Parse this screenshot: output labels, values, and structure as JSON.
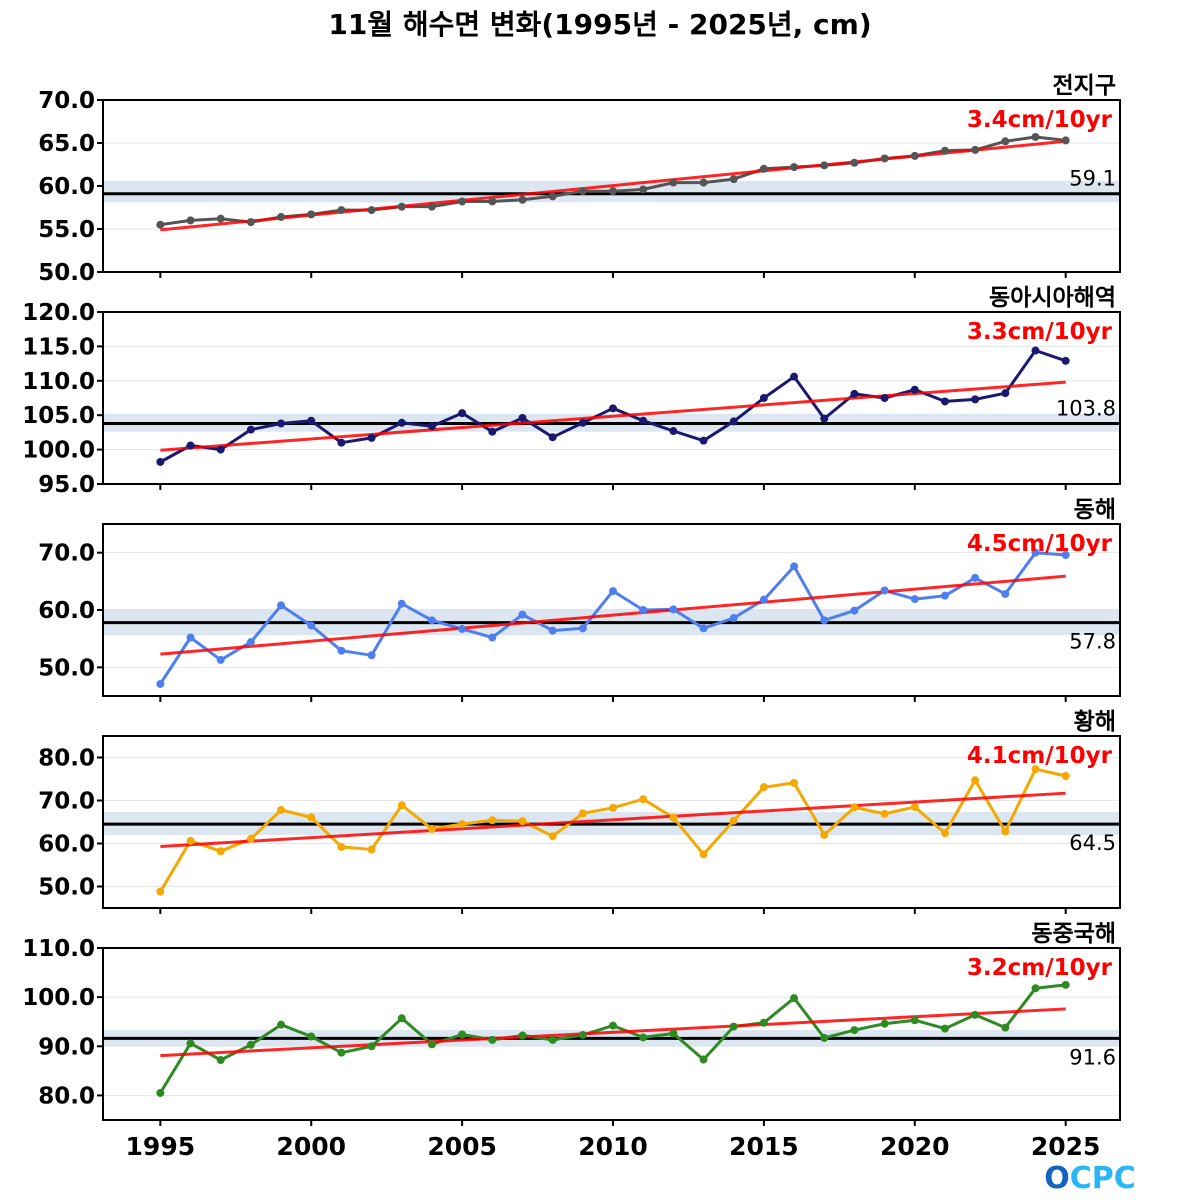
{
  "title": "11월 해수면 변화(1995년 - 2025년, cm)",
  "logo": {
    "text": "OCPC",
    "colors": [
      "#1565c0",
      "#29b6f6"
    ]
  },
  "chart_data": [
    {
      "type": "line",
      "region": "전지구",
      "trend_label": "3.4cm/10yr",
      "mean": 59.1,
      "mean_label": "59.1",
      "mean_band": [
        58.1,
        60.6
      ],
      "color": "#555555",
      "ylim": [
        50,
        70
      ],
      "yticks": [
        50.0,
        55.0,
        60.0,
        65.0,
        70.0
      ],
      "ytick_labels": [
        "50.0",
        "55.0",
        "60.0",
        "65.0",
        "70.0"
      ],
      "trend_line": [
        54.9,
        65.2
      ],
      "x": [
        1995,
        1996,
        1997,
        1998,
        1999,
        2000,
        2001,
        2002,
        2003,
        2004,
        2005,
        2006,
        2007,
        2008,
        2009,
        2010,
        2011,
        2012,
        2013,
        2014,
        2015,
        2016,
        2017,
        2018,
        2019,
        2020,
        2021,
        2022,
        2023,
        2024,
        2025
      ],
      "values": [
        55.5,
        56.0,
        56.2,
        55.8,
        56.4,
        56.7,
        57.2,
        57.2,
        57.6,
        57.6,
        58.2,
        58.2,
        58.4,
        58.8,
        59.4,
        59.4,
        59.6,
        60.4,
        60.4,
        60.8,
        62.0,
        62.2,
        62.4,
        62.7,
        63.2,
        63.5,
        64.1,
        64.2,
        65.2,
        65.7,
        65.3
      ]
    },
    {
      "type": "line",
      "region": "동아시아해역",
      "trend_label": "3.3cm/10yr",
      "mean": 103.8,
      "mean_label": "103.8",
      "mean_band": [
        102.6,
        105.2
      ],
      "color": "#191970",
      "ylim": [
        95,
        120
      ],
      "yticks": [
        95.0,
        100.0,
        105.0,
        110.0,
        115.0,
        120.0
      ],
      "ytick_labels": [
        "95.0",
        "100.0",
        "105.0",
        "110.0",
        "115.0",
        "120.0"
      ],
      "trend_line": [
        99.9,
        109.8
      ],
      "x": [
        1995,
        1996,
        1997,
        1998,
        1999,
        2000,
        2001,
        2002,
        2003,
        2004,
        2005,
        2006,
        2007,
        2008,
        2009,
        2010,
        2011,
        2012,
        2013,
        2014,
        2015,
        2016,
        2017,
        2018,
        2019,
        2020,
        2021,
        2022,
        2023,
        2024,
        2025
      ],
      "values": [
        98.2,
        100.6,
        100.0,
        102.9,
        103.8,
        104.2,
        101.0,
        101.7,
        103.9,
        103.4,
        105.3,
        102.6,
        104.6,
        101.8,
        103.9,
        106.0,
        104.2,
        102.7,
        101.3,
        104.1,
        107.5,
        110.6,
        104.5,
        108.1,
        107.5,
        108.7,
        107.0,
        107.3,
        108.2,
        114.4,
        112.9
      ]
    },
    {
      "type": "line",
      "region": "동해",
      "trend_label": "4.5cm/10yr",
      "mean": 57.8,
      "mean_label": "57.8",
      "mean_band": [
        55.6,
        60.2
      ],
      "color": "#4f7ef0",
      "ylim": [
        45,
        75
      ],
      "yticks": [
        50.0,
        60.0,
        70.0
      ],
      "ytick_labels": [
        "50.0",
        "60.0",
        "70.0"
      ],
      "trend_line": [
        52.3,
        65.9
      ],
      "x": [
        1995,
        1996,
        1997,
        1998,
        1999,
        2000,
        2001,
        2002,
        2003,
        2004,
        2005,
        2006,
        2007,
        2008,
        2009,
        2010,
        2011,
        2012,
        2013,
        2014,
        2015,
        2016,
        2017,
        2018,
        2019,
        2020,
        2021,
        2022,
        2023,
        2024,
        2025
      ],
      "values": [
        47.1,
        55.2,
        51.3,
        54.4,
        60.8,
        57.3,
        52.9,
        52.1,
        61.1,
        58.2,
        56.7,
        55.2,
        59.2,
        56.4,
        56.8,
        63.3,
        60.0,
        60.1,
        56.8,
        58.6,
        61.8,
        67.6,
        58.2,
        59.9,
        63.4,
        61.9,
        62.5,
        65.6,
        62.8,
        70.0,
        69.6
      ]
    },
    {
      "type": "line",
      "region": "황해",
      "trend_label": "4.1cm/10yr",
      "mean": 64.5,
      "mean_label": "64.5",
      "mean_band": [
        62.0,
        67.3
      ],
      "color": "#f5a800",
      "ylim": [
        45,
        85
      ],
      "yticks": [
        50.0,
        60.0,
        70.0,
        80.0
      ],
      "ytick_labels": [
        "50.0",
        "60.0",
        "70.0",
        "80.0"
      ],
      "trend_line": [
        59.3,
        71.7
      ],
      "x": [
        1995,
        1996,
        1997,
        1998,
        1999,
        2000,
        2001,
        2002,
        2003,
        2004,
        2005,
        2006,
        2007,
        2008,
        2009,
        2010,
        2011,
        2012,
        2013,
        2014,
        2015,
        2016,
        2017,
        2018,
        2019,
        2020,
        2021,
        2022,
        2023,
        2024,
        2025
      ],
      "values": [
        48.8,
        60.6,
        58.2,
        61.1,
        67.8,
        66.1,
        59.2,
        58.6,
        68.9,
        63.4,
        64.5,
        65.4,
        65.2,
        61.7,
        67.0,
        68.3,
        70.3,
        66.0,
        57.5,
        65.3,
        73.1,
        74.1,
        62.0,
        68.4,
        66.9,
        68.5,
        62.4,
        74.7,
        62.8,
        77.3,
        75.7
      ]
    },
    {
      "type": "line",
      "region": "동중국해",
      "trend_label": "3.2cm/10yr",
      "mean": 91.6,
      "mean_label": "91.6",
      "mean_band": [
        90.0,
        93.3
      ],
      "color": "#2e8b22",
      "ylim": [
        75,
        110
      ],
      "yticks": [
        80.0,
        90.0,
        100.0,
        110.0
      ],
      "ytick_labels": [
        "80.0",
        "90.0",
        "100.0",
        "110.0"
      ],
      "trend_line": [
        88.1,
        97.6
      ],
      "x": [
        1995,
        1996,
        1997,
        1998,
        1999,
        2000,
        2001,
        2002,
        2003,
        2004,
        2005,
        2006,
        2007,
        2008,
        2009,
        2010,
        2011,
        2012,
        2013,
        2014,
        2015,
        2016,
        2017,
        2018,
        2019,
        2020,
        2021,
        2022,
        2023,
        2024,
        2025
      ],
      "values": [
        80.5,
        90.6,
        87.2,
        90.3,
        94.4,
        92.0,
        88.7,
        90.0,
        95.7,
        90.4,
        92.4,
        91.3,
        92.2,
        91.3,
        92.3,
        94.2,
        91.8,
        92.6,
        87.3,
        94.0,
        94.8,
        99.8,
        91.7,
        93.3,
        94.6,
        95.3,
        93.6,
        96.4,
        93.8,
        101.8,
        102.5
      ]
    }
  ],
  "x_axis": {
    "ticks": [
      1995,
      2000,
      2005,
      2010,
      2015,
      2020,
      2025
    ],
    "tick_labels": [
      "1995",
      "2000",
      "2005",
      "2010",
      "2015",
      "2020",
      "2025"
    ]
  }
}
